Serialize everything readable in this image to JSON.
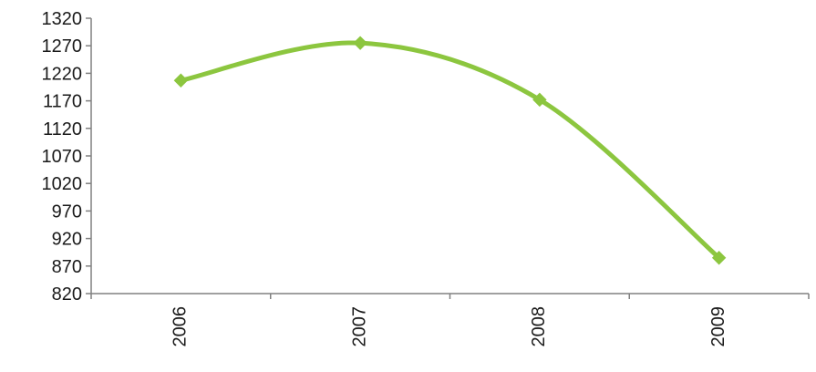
{
  "chart_data": {
    "type": "line",
    "categories": [
      "2006",
      "2007",
      "2008",
      "2009"
    ],
    "series": [
      {
        "values": [
          1207,
          1275,
          1172,
          885
        ],
        "color": "#8cc63f"
      }
    ],
    "ylim": [
      820,
      1320
    ],
    "yticks": [
      820,
      870,
      920,
      970,
      1020,
      1070,
      1120,
      1170,
      1220,
      1270,
      1320
    ],
    "grid": false,
    "legend": "none",
    "line_smooth": true
  }
}
